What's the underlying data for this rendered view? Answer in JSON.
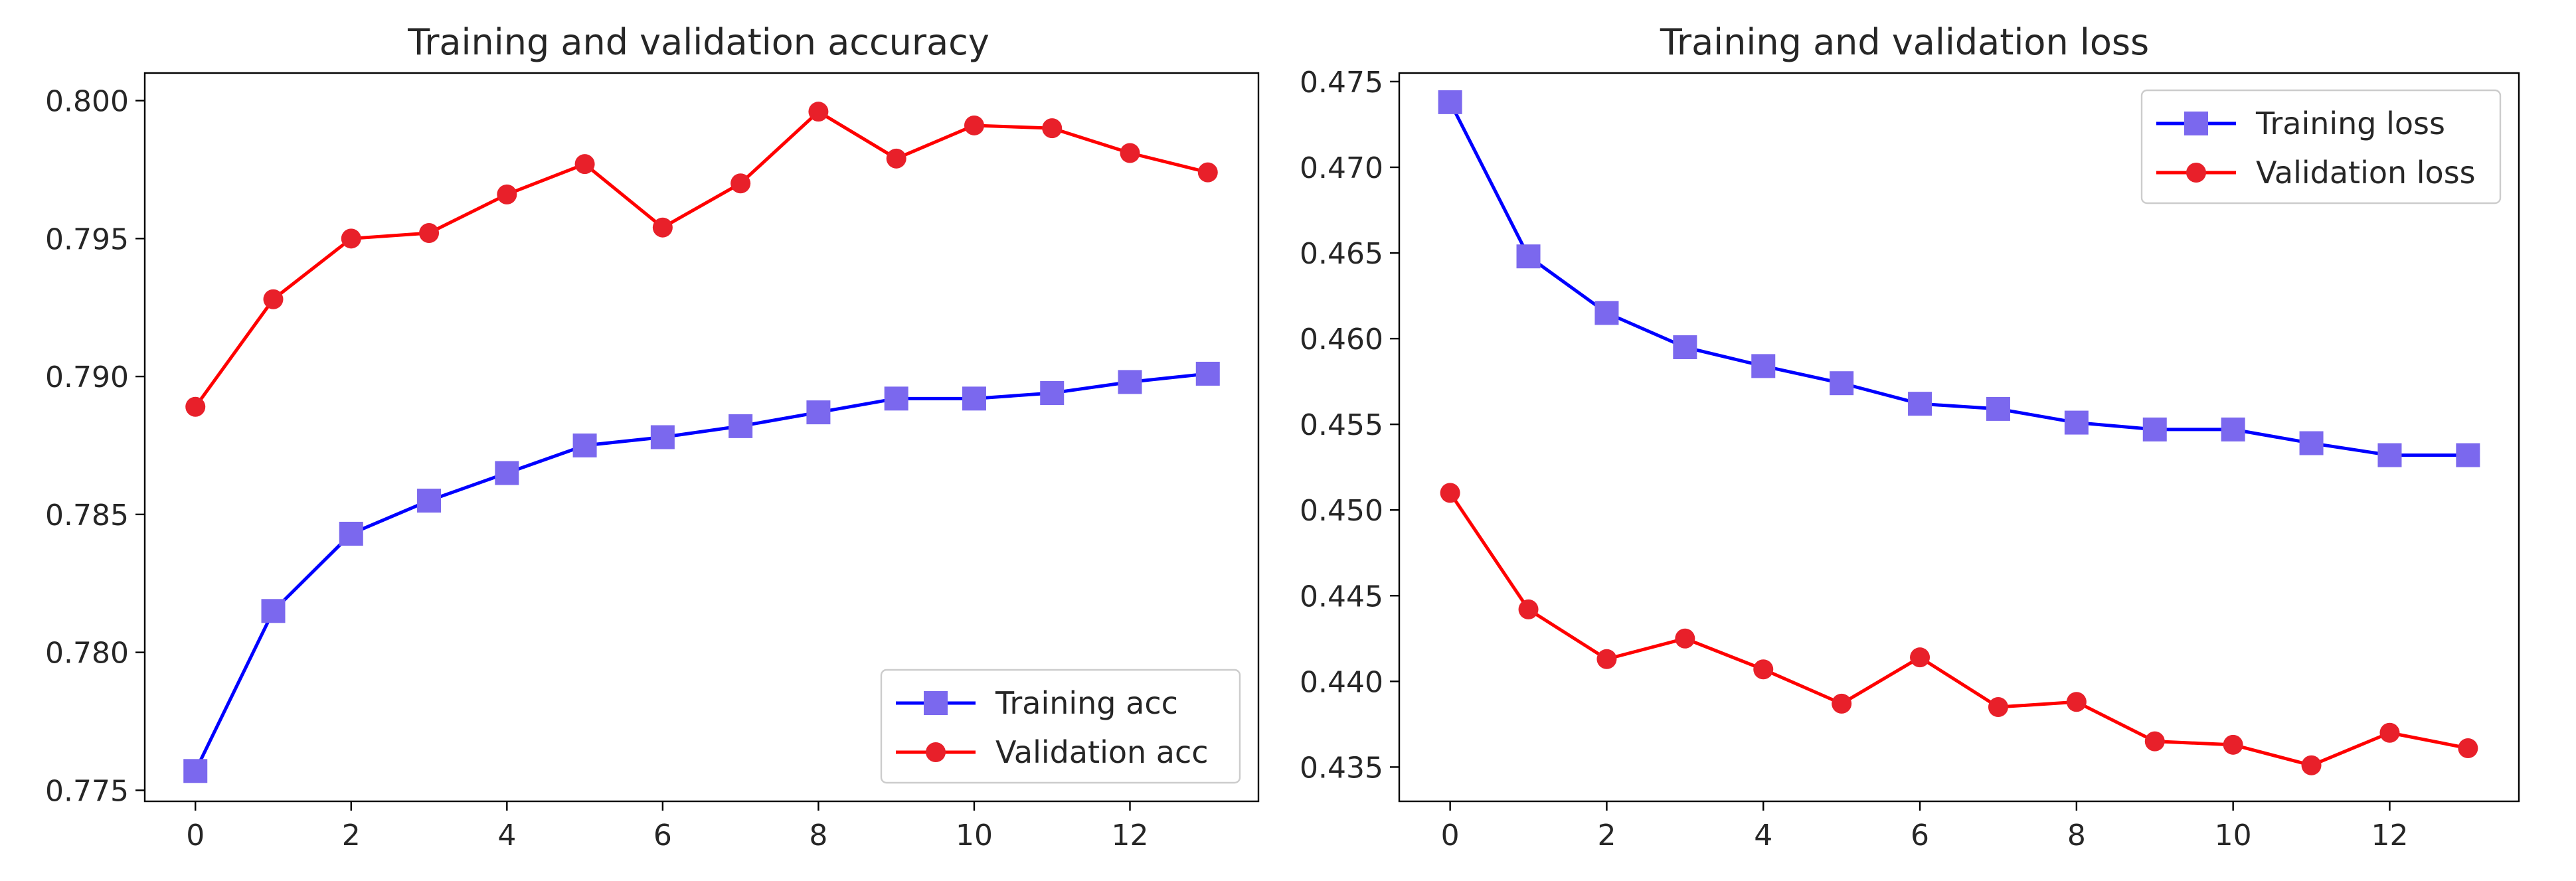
{
  "chart_data": [
    {
      "type": "line",
      "title": "Training and validation accuracy",
      "xlabel": "",
      "ylabel": "",
      "x": [
        0,
        1,
        2,
        3,
        4,
        5,
        6,
        7,
        8,
        9,
        10,
        11,
        12,
        13
      ],
      "xlim": [
        -0.65,
        13.65
      ],
      "ylim": [
        0.7746,
        0.801
      ],
      "xticks": [
        0,
        2,
        4,
        6,
        8,
        10,
        12
      ],
      "xtick_labels": [
        "0",
        "2",
        "4",
        "6",
        "8",
        "10",
        "12"
      ],
      "yticks": [
        0.775,
        0.78,
        0.785,
        0.79,
        0.795,
        0.8
      ],
      "ytick_labels": [
        "0.775",
        "0.780",
        "0.785",
        "0.790",
        "0.795",
        "0.800"
      ],
      "legend_position": "lower-right",
      "grid": false,
      "series": [
        {
          "name": "Training acc",
          "color": "#0000ff",
          "marker_color": "#7b68ee",
          "marker": "square",
          "values": [
            0.7757,
            0.7815,
            0.7843,
            0.7855,
            0.7865,
            0.7875,
            0.7878,
            0.7882,
            0.7887,
            0.7892,
            0.7892,
            0.7894,
            0.7898,
            0.7901
          ]
        },
        {
          "name": "Validation acc",
          "color": "#ff0000",
          "marker_color": "#e8202a",
          "marker": "circle",
          "values": [
            0.7889,
            0.7928,
            0.795,
            0.7952,
            0.7966,
            0.7977,
            0.7954,
            0.797,
            0.7996,
            0.7979,
            0.7991,
            0.799,
            0.7981,
            0.7974
          ]
        }
      ]
    },
    {
      "type": "line",
      "title": "Training and validation loss",
      "xlabel": "",
      "ylabel": "",
      "x": [
        0,
        1,
        2,
        3,
        4,
        5,
        6,
        7,
        8,
        9,
        10,
        11,
        12,
        13
      ],
      "xlim": [
        -0.65,
        13.65
      ],
      "ylim": [
        0.433,
        0.4755
      ],
      "xticks": [
        0,
        2,
        4,
        6,
        8,
        10,
        12
      ],
      "xtick_labels": [
        "0",
        "2",
        "4",
        "6",
        "8",
        "10",
        "12"
      ],
      "yticks": [
        0.435,
        0.44,
        0.445,
        0.45,
        0.455,
        0.46,
        0.465,
        0.47,
        0.475
      ],
      "ytick_labels": [
        "0.435",
        "0.440",
        "0.445",
        "0.450",
        "0.455",
        "0.460",
        "0.465",
        "0.470",
        "0.475"
      ],
      "legend_position": "upper-right",
      "grid": false,
      "series": [
        {
          "name": "Training loss",
          "color": "#0000ff",
          "marker_color": "#7b68ee",
          "marker": "square",
          "values": [
            0.4738,
            0.4648,
            0.4615,
            0.4595,
            0.4584,
            0.4574,
            0.4562,
            0.4559,
            0.4551,
            0.4547,
            0.4547,
            0.4539,
            0.4532,
            0.4532
          ]
        },
        {
          "name": "Validation loss",
          "color": "#ff0000",
          "marker_color": "#e8202a",
          "marker": "circle",
          "values": [
            0.451,
            0.4442,
            0.4413,
            0.4425,
            0.4407,
            0.4387,
            0.4414,
            0.4385,
            0.4388,
            0.4365,
            0.4363,
            0.4351,
            0.437,
            0.4361
          ]
        }
      ]
    }
  ]
}
